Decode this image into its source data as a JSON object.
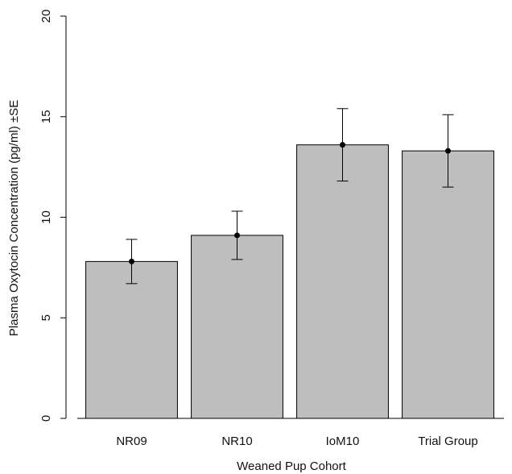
{
  "chart_data": {
    "type": "bar",
    "categories": [
      "NR09",
      "NR10",
      "IoM10",
      "Trial Group"
    ],
    "values": [
      7.8,
      9.1,
      13.6,
      13.3
    ],
    "error_upper": [
      8.9,
      10.3,
      15.4,
      15.1
    ],
    "error_lower": [
      6.7,
      7.9,
      11.8,
      11.5
    ],
    "xlabel": "Weaned Pup Cohort",
    "ylabel": "Plasma Oxytocin Concentration (pg/ml) ±SE",
    "ylim": [
      0,
      20
    ],
    "yticks": [
      0,
      5,
      10,
      15,
      20
    ],
    "grid": false,
    "colors": {
      "bar_fill": "#bebebe",
      "bar_stroke": "#000000",
      "axis": "#000000",
      "point": "#000000"
    }
  }
}
